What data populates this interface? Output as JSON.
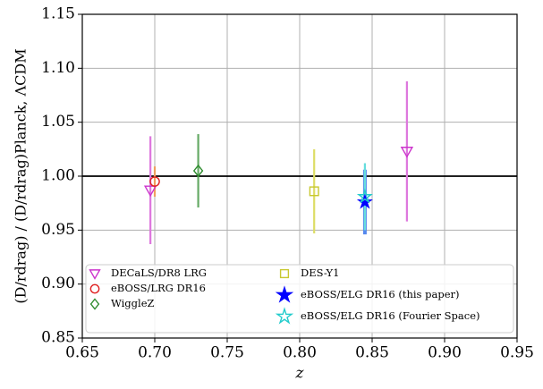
{
  "chart_data": {
    "type": "errorbar_scatter",
    "xlabel": "z",
    "ylabel": "(D/rdrag) / (D/rdrag)Planck, ΛCDM",
    "xlim": [
      0.65,
      0.95
    ],
    "ylim": [
      0.85,
      1.15
    ],
    "xticks": [
      0.65,
      {
        "value": 0.7,
        "label": "0.70"
      },
      0.75,
      {
        "value": 0.8,
        "label": "0.80"
      },
      0.85,
      {
        "value": 0.9,
        "label": "0.90"
      },
      0.95
    ],
    "yticks": [
      0.85,
      {
        "value": 0.9,
        "label": "0.90"
      },
      0.95,
      {
        "value": 1.0,
        "label": "1.00"
      },
      1.05,
      {
        "value": 1.1,
        "label": "1.10"
      },
      1.15
    ],
    "grid": true,
    "hline": 1.0,
    "legend": "lower left",
    "series": [
      {
        "name": "DECaLS/DR8 LRG",
        "marker": "triangle-down",
        "filled": false,
        "color": "#cc33cc",
        "ecolor": "#dd77dd",
        "x": [
          0.697,
          0.874
        ],
        "values": [
          0.987,
          1.023
        ],
        "errors": [
          0.05,
          0.065
        ]
      },
      {
        "name": "eBOSS/LRG DR16",
        "marker": "circle",
        "filled": false,
        "color": "#e02020",
        "ecolor": "#f0a060",
        "x": [
          0.7
        ],
        "values": [
          0.995
        ],
        "errors": [
          0.014
        ]
      },
      {
        "name": "WiggleZ",
        "marker": "diamond",
        "filled": false,
        "color": "#2e8b2e",
        "ecolor": "#66aa66",
        "x": [
          0.73
        ],
        "values": [
          1.005
        ],
        "errors": [
          0.034
        ]
      },
      {
        "name": "DES-Y1",
        "marker": "square",
        "filled": false,
        "color": "#c8c830",
        "ecolor": "#dddd66",
        "x": [
          0.81
        ],
        "values": [
          0.986
        ],
        "errors": [
          0.039
        ]
      },
      {
        "name": "eBOSS/ELG DR16 (this paper)",
        "marker": "star",
        "filled": true,
        "color": "#0000ff",
        "ecolor": "#5588ee",
        "x": [
          0.845
        ],
        "values": [
          0.976
        ],
        "errors": [
          0.03
        ]
      },
      {
        "name": "eBOSS/ELG DR16 (Fourier Space)",
        "marker": "star",
        "filled": false,
        "color": "#22cccc",
        "ecolor": "#66dddd",
        "x": [
          0.845
        ],
        "values": [
          0.981
        ],
        "errors": [
          0.031
        ]
      }
    ]
  }
}
